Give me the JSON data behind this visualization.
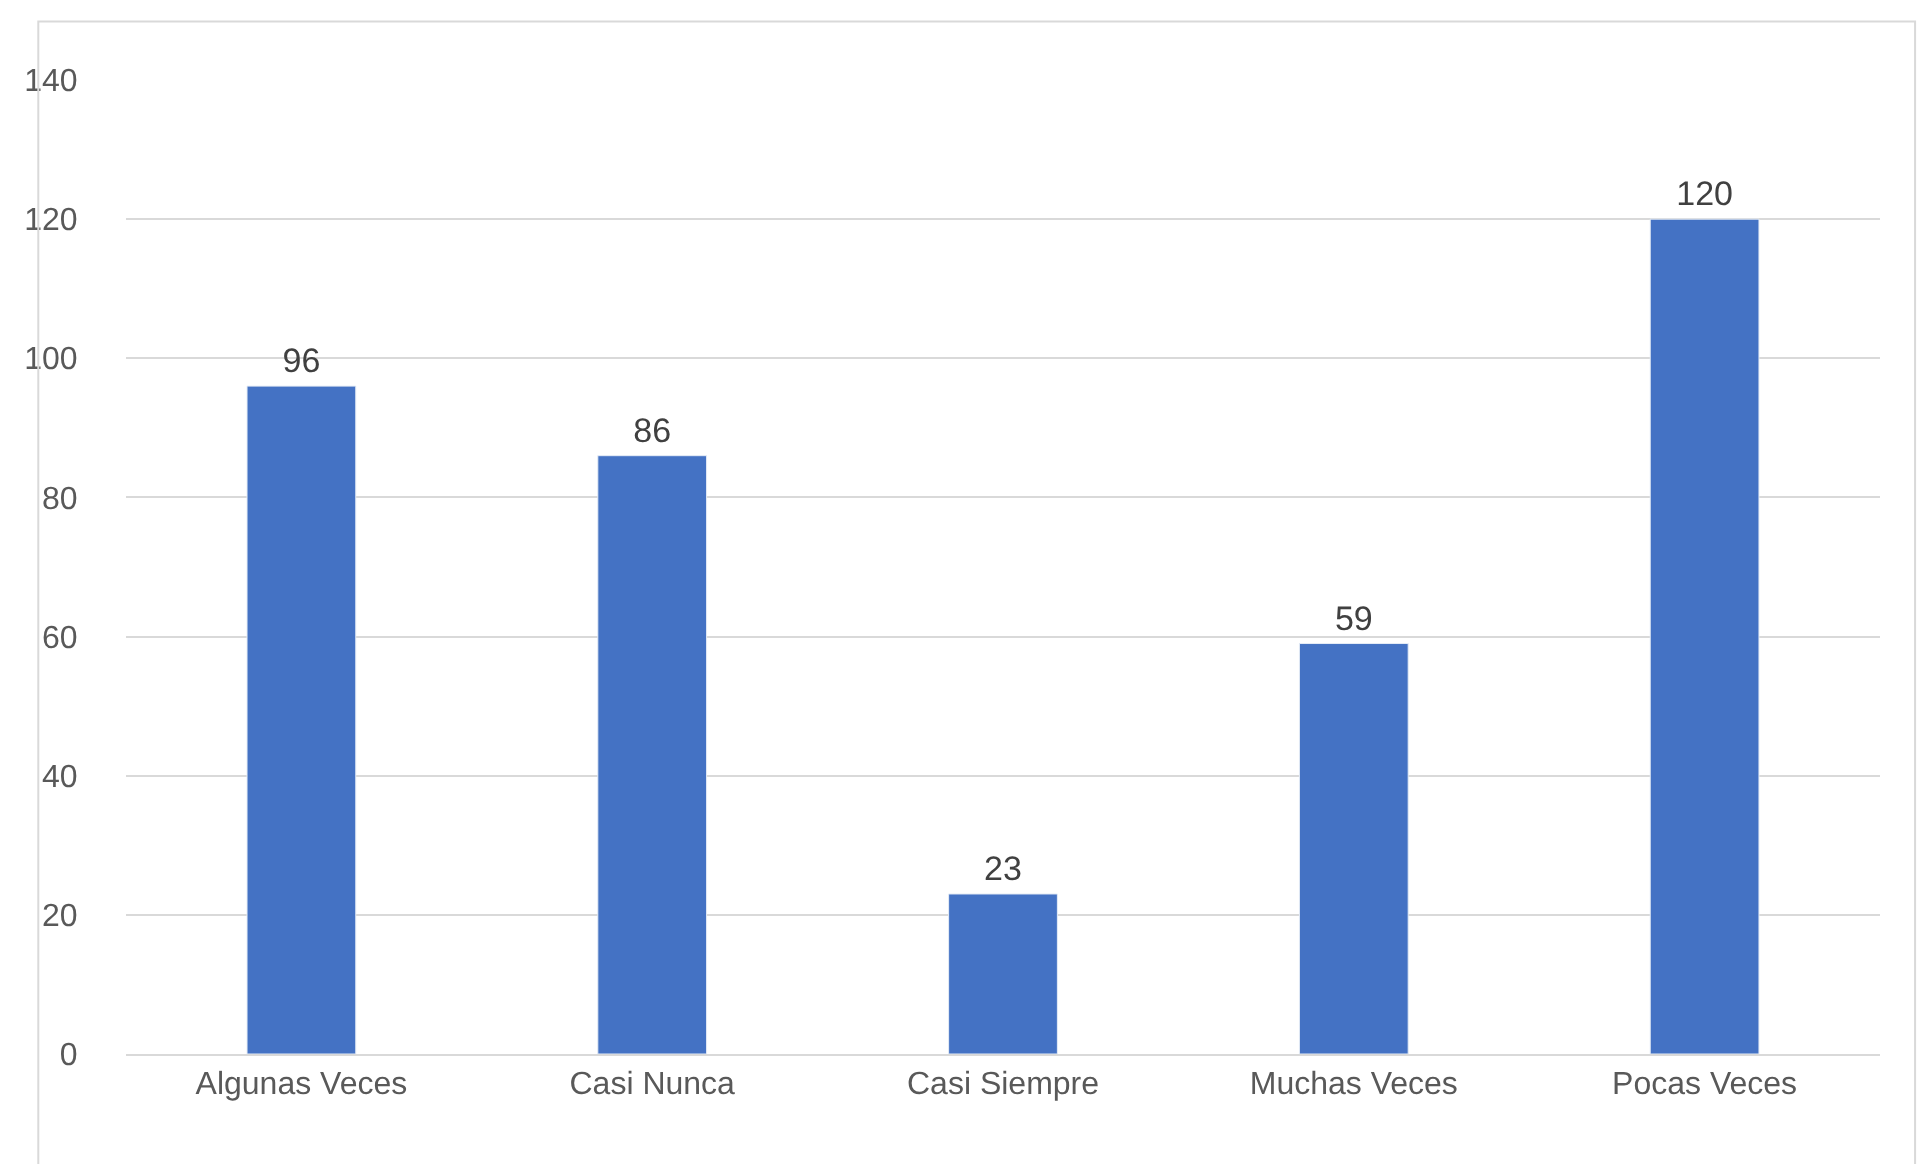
{
  "chart_data": {
    "type": "bar",
    "categories": [
      "Algunas Veces",
      "Casi Nunca",
      "Casi Siempre",
      "Muchas Veces",
      "Pocas Veces"
    ],
    "values": [
      96,
      86,
      23,
      59,
      120
    ],
    "color": "#4472c4",
    "ylim": [
      0,
      140
    ],
    "yticks": [
      0,
      20,
      40,
      60,
      80,
      100,
      120,
      140
    ],
    "grid": "y",
    "data_labels": true,
    "legend": false
  }
}
